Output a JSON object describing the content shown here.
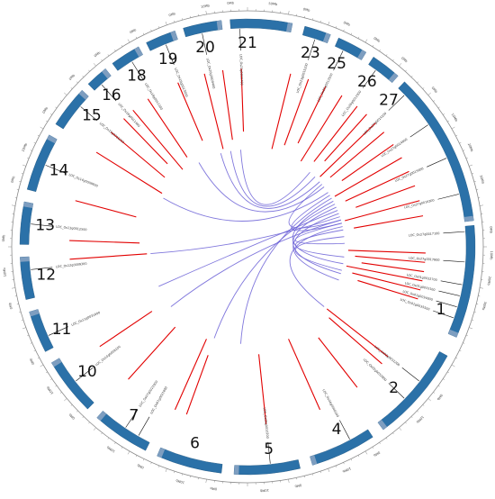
{
  "figure": {
    "colors": {
      "chromosome_fill": "#2b71a8",
      "chromosome_cap": "#7e9ec0",
      "marker_line": "#e20000",
      "link_line": "#6a5fd6",
      "outer_ring": "#8a8a8a",
      "label": "#111111"
    }
  },
  "chromosomes": [
    {
      "label": "1",
      "angle": 108
    },
    {
      "label": "2",
      "angle": 134
    },
    {
      "label": "4",
      "angle": 154
    },
    {
      "label": "5",
      "angle": 174
    },
    {
      "label": "6",
      "angle": 195
    },
    {
      "label": "7",
      "angle": 214
    },
    {
      "label": "10",
      "angle": 232
    },
    {
      "label": "11",
      "angle": 246
    },
    {
      "label": "12",
      "angle": 262
    },
    {
      "label": "13",
      "angle": 276
    },
    {
      "label": "14",
      "angle": 292
    },
    {
      "label": "15",
      "angle": 310
    },
    {
      "label": "16",
      "angle": 318
    },
    {
      "label": "18",
      "angle": 327
    },
    {
      "label": "19",
      "angle": 337
    },
    {
      "label": "20",
      "angle": 348
    },
    {
      "label": "21",
      "angle": 360
    },
    {
      "label": "23",
      "angle": 18
    },
    {
      "label": "25",
      "angle": 26
    },
    {
      "label": "26",
      "angle": 36
    },
    {
      "label": "27",
      "angle": 44
    }
  ],
  "scale_ticks": [
    {
      "label": "0Mb",
      "angle": 86
    },
    {
      "label": "10Mb",
      "angle": 92
    },
    {
      "label": "20Mb",
      "angle": 98
    },
    {
      "label": "30Mb",
      "angle": 104
    },
    {
      "label": "0Mb",
      "angle": 128
    },
    {
      "label": "10Mb",
      "angle": 135
    },
    {
      "label": "0Mb",
      "angle": 148
    },
    {
      "label": "10Mb",
      "angle": 156
    },
    {
      "label": "0Mb",
      "angle": 168
    },
    {
      "label": "10Mb",
      "angle": 176
    },
    {
      "label": "0Mb",
      "angle": 188
    },
    {
      "label": "10Mb",
      "angle": 196
    },
    {
      "label": "0Mb",
      "angle": 206
    },
    {
      "label": "10Mb",
      "angle": 214
    },
    {
      "label": "0Mb",
      "angle": 226
    },
    {
      "label": "10Mb",
      "angle": 234
    },
    {
      "label": "0Mb",
      "angle": 242
    },
    {
      "label": "0Mb",
      "angle": 256
    },
    {
      "label": "10Mb",
      "angle": 264
    },
    {
      "label": "0Mb",
      "angle": 272
    },
    {
      "label": "0Mb",
      "angle": 286
    },
    {
      "label": "10Mb",
      "angle": 294
    },
    {
      "label": "0Mb",
      "angle": 304
    },
    {
      "label": "0Mb",
      "angle": 314
    },
    {
      "label": "0Mb",
      "angle": 322
    },
    {
      "label": "0Mb",
      "angle": 332
    },
    {
      "label": "0Mb",
      "angle": 342
    },
    {
      "label": "10Mb",
      "angle": 350
    },
    {
      "label": "0Mb",
      "angle": 356
    },
    {
      "label": "50Mb",
      "angle": 6
    },
    {
      "label": "0Mb",
      "angle": 14
    },
    {
      "label": "0Mb",
      "angle": 24
    },
    {
      "label": "0Mb",
      "angle": 32
    },
    {
      "label": "0Mb",
      "angle": 40
    },
    {
      "label": "0Mb",
      "angle": 50
    },
    {
      "label": "10Mb",
      "angle": 58
    },
    {
      "label": "20Mb",
      "angle": 66
    },
    {
      "label": "30Mb",
      "angle": 74
    }
  ],
  "gene_labels": [
    {
      "label": "LOC_Os01g0032700",
      "angle": 100
    },
    {
      "label": "LOC_Os01g0033100",
      "angle": 103
    },
    {
      "label": "LOC_Os01g0034600",
      "angle": 106
    },
    {
      "label": "LOC_Os01g0035500",
      "angle": 109
    },
    {
      "label": "LOC_Os02g0031200",
      "angle": 128
    },
    {
      "label": "LOC_Os02g0032800",
      "angle": 134
    },
    {
      "label": "LOC_Os04g0040200",
      "angle": 152
    },
    {
      "label": "LOC_Os05g0010200",
      "angle": 174
    },
    {
      "label": "LOC_Os07g0021600",
      "angle": 210
    },
    {
      "label": "LOC_Os07g0021900",
      "angle": 214
    },
    {
      "label": "LOC_Os10g0008100",
      "angle": 232
    },
    {
      "label": "LOC_Os11g0031600",
      "angle": 246
    },
    {
      "label": "LOC_Os12g0009300",
      "angle": 264
    },
    {
      "label": "LOC_Os13g0012500",
      "angle": 276
    },
    {
      "label": "LOC_Os14g0008600",
      "angle": 292
    },
    {
      "label": "LOC_Os15g0016200",
      "angle": 310
    },
    {
      "label": "LOC_Os16g0011400",
      "angle": 318
    },
    {
      "label": "LOC_Os18g0012200",
      "angle": 328
    },
    {
      "label": "LOC_Os19g0013600",
      "angle": 338
    },
    {
      "label": "LOC_Os20g0020400",
      "angle": 348
    },
    {
      "label": "LOC_Os21g0015700",
      "angle": 358
    },
    {
      "label": "LOC_Os23g0015200",
      "angle": 18
    },
    {
      "label": "LOC_Os25g0012500",
      "angle": 26
    },
    {
      "label": "LOC_Os26g0011900",
      "angle": 36
    },
    {
      "label": "LOC_Os27g0014100",
      "angle": 46
    },
    {
      "label": "LOC_Os27g0014800",
      "angle": 56
    },
    {
      "label": "LOC_Os27g0015600",
      "angle": 66
    },
    {
      "label": "LOC_Os27g0016300",
      "angle": 76
    },
    {
      "label": "LOC_Os27g0017100",
      "angle": 86
    },
    {
      "label": "LOC_Os27g0017900",
      "angle": 94
    }
  ],
  "markers": [
    {
      "angle": 92
    },
    {
      "angle": 95
    },
    {
      "angle": 98
    },
    {
      "angle": 101
    },
    {
      "angle": 104
    },
    {
      "angle": 107
    },
    {
      "angle": 128
    },
    {
      "angle": 131
    },
    {
      "angle": 142
    },
    {
      "angle": 156
    },
    {
      "angle": 174
    },
    {
      "angle": 200
    },
    {
      "angle": 204
    },
    {
      "angle": 222
    },
    {
      "angle": 236
    },
    {
      "angle": 266
    },
    {
      "angle": 272
    },
    {
      "angle": 285
    },
    {
      "angle": 302
    },
    {
      "angle": 310
    },
    {
      "angle": 316
    },
    {
      "angle": 320
    },
    {
      "angle": 326
    },
    {
      "angle": 337
    },
    {
      "angle": 346
    },
    {
      "angle": 352
    },
    {
      "angle": 358
    },
    {
      "angle": 14
    },
    {
      "angle": 20
    },
    {
      "angle": 26
    },
    {
      "angle": 32
    },
    {
      "angle": 38
    },
    {
      "angle": 42
    },
    {
      "angle": 46
    },
    {
      "angle": 50
    },
    {
      "angle": 55
    },
    {
      "angle": 60
    },
    {
      "angle": 65
    },
    {
      "angle": 70
    },
    {
      "angle": 75
    },
    {
      "angle": 80
    }
  ],
  "links": [
    {
      "from": 60,
      "to": 184
    },
    {
      "from": 64,
      "to": 200
    },
    {
      "from": 68,
      "to": 246
    },
    {
      "from": 72,
      "to": 266
    },
    {
      "from": 56,
      "to": 300
    },
    {
      "from": 52,
      "to": 330
    },
    {
      "from": 48,
      "to": 344
    },
    {
      "from": 44,
      "to": 350
    },
    {
      "from": 40,
      "to": 356
    },
    {
      "from": 76,
      "to": 88
    },
    {
      "from": 80,
      "to": 96
    },
    {
      "from": 84,
      "to": 104
    },
    {
      "from": 70,
      "to": 110
    },
    {
      "from": 66,
      "to": 106
    },
    {
      "from": 62,
      "to": 100
    },
    {
      "from": 58,
      "to": 76
    },
    {
      "from": 50,
      "to": 74
    },
    {
      "from": 78,
      "to": 128
    },
    {
      "from": 74,
      "to": 232
    }
  ]
}
